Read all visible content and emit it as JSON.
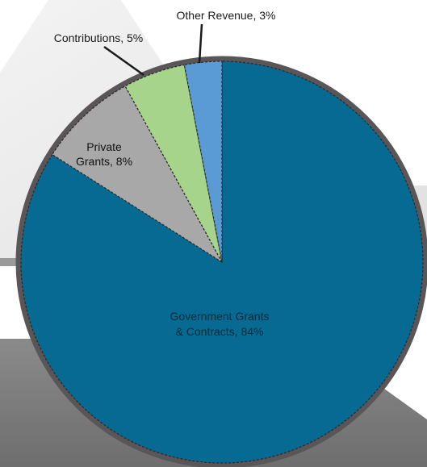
{
  "chart_data": {
    "type": "pie",
    "title": "",
    "slices": [
      {
        "label_line1": "Government Grants",
        "label_line2": "& Contracts, 84%",
        "value": 84,
        "color": "#066a93"
      },
      {
        "label_line1": "Private",
        "label_line2": "Grants, 8%",
        "value": 8,
        "color": "#a8a8a8"
      },
      {
        "label_line1": "Contributions, 5%",
        "label_line2": "",
        "value": 5,
        "color": "#a7d48b"
      },
      {
        "label_line1": "Other Revenue, 3%",
        "label_line2": "",
        "value": 3,
        "color": "#5b9bd5"
      }
    ],
    "rim_color": "#5a5657",
    "background_colors": [
      "#eeeeee",
      "#7f7f7f"
    ]
  }
}
